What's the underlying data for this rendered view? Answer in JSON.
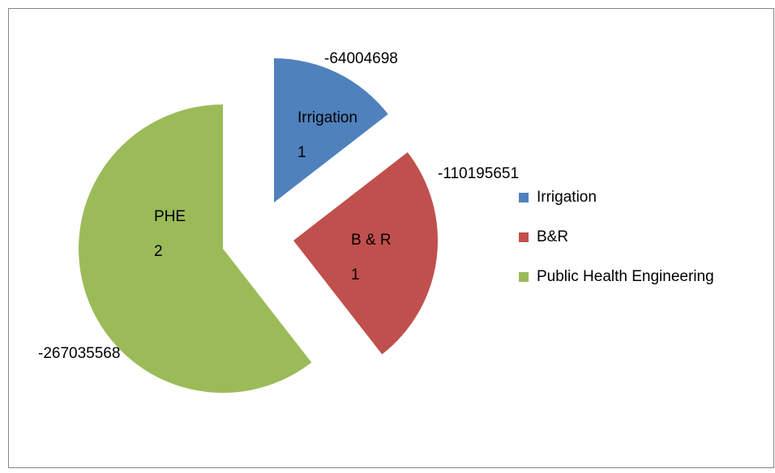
{
  "chart_data": {
    "type": "pie",
    "categories": [
      "Irrigation",
      "B&R",
      "Public Health Engineering"
    ],
    "values": [
      -64004698,
      -110195651,
      -267035568
    ],
    "colors": [
      "#4f81bd",
      "#c0504d",
      "#9bbb59"
    ],
    "slice_labels": [
      {
        "name": "Irrigation",
        "count": 1
      },
      {
        "name": "B & R",
        "count": 1
      },
      {
        "name": "PHE",
        "count": 2
      }
    ],
    "legend": "right"
  }
}
